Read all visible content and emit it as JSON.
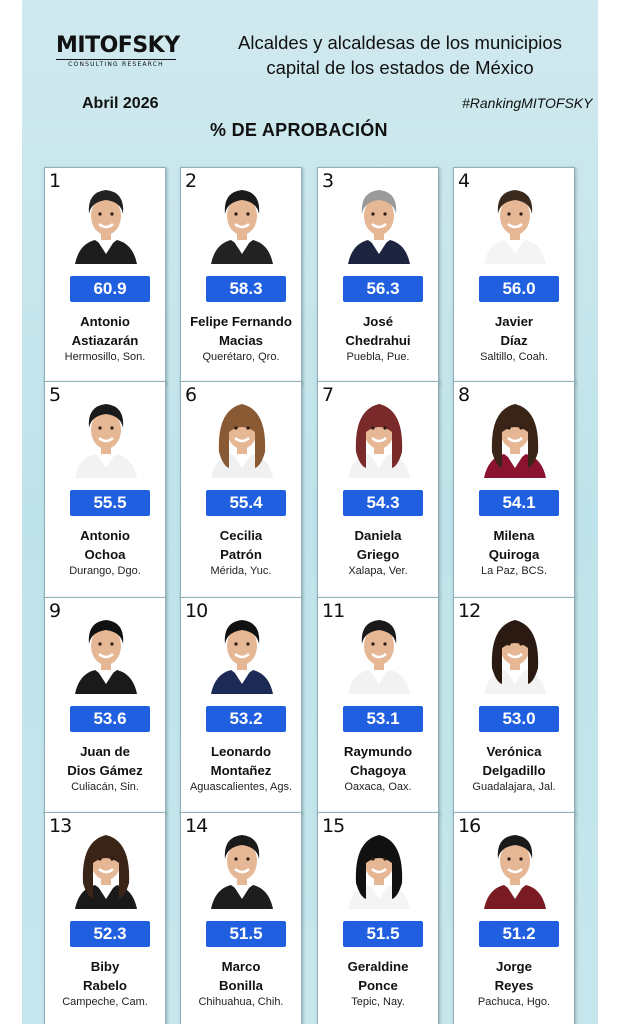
{
  "header": {
    "logo_text": "MITOFSKY",
    "logo_sub": "CONSULTING RESEARCH",
    "date": "Abril 2026",
    "title_line1": "Alcaldes y alcaldesas de los municipios",
    "title_line2": "capital de los estados de México",
    "hashtag": "#RankingMITOFSKY",
    "subtitle": "% DE APROBACIÓN"
  },
  "colors": {
    "score_badge": "#1f5fe0",
    "background": "#c5e6ec"
  },
  "mayors": [
    {
      "rank": "1",
      "score": "60.9",
      "first": "Antonio",
      "last": "Astiazarán",
      "place": "Hermosillo, Son.",
      "gender": "m",
      "hair": "#222",
      "shirt": "#fff",
      "suit": "#1d1d1d"
    },
    {
      "rank": "2",
      "score": "58.3",
      "first": "Felipe Fernando",
      "last": "Macias",
      "place": "Querétaro, Qro.",
      "gender": "m",
      "hair": "#1a1a1a",
      "shirt": "#fff",
      "suit": "#222"
    },
    {
      "rank": "3",
      "score": "56.3",
      "first": "José",
      "last": "Chedrahui",
      "place": "Puebla, Pue.",
      "gender": "m",
      "hair": "#9a9a9a",
      "shirt": "#fff",
      "suit": "#1c2440"
    },
    {
      "rank": "4",
      "score": "56.0",
      "first": "Javier",
      "last": "Díaz",
      "place": "Saltillo, Coah.",
      "gender": "m",
      "hair": "#3a2a1e",
      "shirt": "#fff",
      "suit": "#f4f4f4"
    },
    {
      "rank": "5",
      "score": "55.5",
      "first": "Antonio",
      "last": "Ochoa",
      "place": "Durango, Dgo.",
      "gender": "m",
      "hair": "#1a1a1a",
      "shirt": "#fff",
      "suit": "#f2f2f2"
    },
    {
      "rank": "6",
      "score": "55.4",
      "first": "Cecilia",
      "last": "Patrón",
      "place": "Mérida, Yuc.",
      "gender": "f",
      "hair": "#8a5a35",
      "shirt": "#fff",
      "suit": "#f0f0f0"
    },
    {
      "rank": "7",
      "score": "54.3",
      "first": "Daniela",
      "last": "Griego",
      "place": "Xalapa, Ver.",
      "gender": "f",
      "hair": "#7a2a2a",
      "shirt": "#fff",
      "suit": "#f2f2f2"
    },
    {
      "rank": "8",
      "score": "54.1",
      "first": "Milena",
      "last": "Quiroga",
      "place": "La Paz, BCS.",
      "gender": "f",
      "hair": "#3a2418",
      "shirt": "#fff",
      "suit": "#8a1430"
    },
    {
      "rank": "9",
      "score": "53.6",
      "first": "Juan de",
      "last": "Dios Gámez",
      "place": "Culiacán, Sin.",
      "gender": "m",
      "hair": "#111",
      "shirt": "#fff",
      "suit": "#1a1a1a"
    },
    {
      "rank": "10",
      "score": "53.2",
      "first": "Leonardo",
      "last": "Montañez",
      "place": "Aguascalientes, Ags.",
      "gender": "m",
      "hair": "#111",
      "shirt": "#fff",
      "suit": "#1d2a55"
    },
    {
      "rank": "11",
      "score": "53.1",
      "first": "Raymundo",
      "last": "Chagoya",
      "place": "Oaxaca, Oax.",
      "gender": "m",
      "hair": "#1a1a1a",
      "shirt": "#fff",
      "suit": "#f2f2f2"
    },
    {
      "rank": "12",
      "score": "53.0",
      "first": "Verónica",
      "last": "Delgadillo",
      "place": "Guadalajara, Jal.",
      "gender": "f",
      "hair": "#2a1a12",
      "shirt": "#fff",
      "suit": "#f3f3f3"
    },
    {
      "rank": "13",
      "score": "52.3",
      "first": "Biby",
      "last": "Rabelo",
      "place": "Campeche, Cam.",
      "gender": "f",
      "hair": "#3a2418",
      "shirt": "#fff",
      "suit": "#1a1a1a"
    },
    {
      "rank": "14",
      "score": "51.5",
      "first": "Marco",
      "last": "Bonilla",
      "place": "Chihuahua, Chih.",
      "gender": "m",
      "hair": "#1a1a1a",
      "shirt": "#fff",
      "suit": "#1d1d1d"
    },
    {
      "rank": "15",
      "score": "51.5",
      "first": "Geraldine",
      "last": "Ponce",
      "place": "Tepic, Nay.",
      "gender": "f",
      "hair": "#111",
      "shirt": "#fff",
      "suit": "#f4f4f4"
    },
    {
      "rank": "16",
      "score": "51.2",
      "first": "Jorge",
      "last": "Reyes",
      "place": "Pachuca, Hgo.",
      "gender": "m",
      "hair": "#1a1a1a",
      "shirt": "#fff",
      "suit": "#7a1a22"
    }
  ]
}
